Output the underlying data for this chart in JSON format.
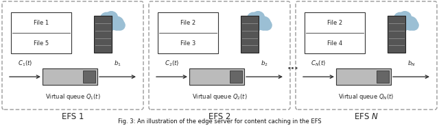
{
  "fig_width": 6.4,
  "fig_height": 1.87,
  "dpi": 100,
  "bg_color": "#ffffff",
  "caption": "Fig. 3: An illustration of the edge server for content caching in the EFS",
  "panels": [
    {
      "label": "EFS 1",
      "files": [
        "File 1",
        "File 5"
      ],
      "c_label": "C_1",
      "b_label": "b_1",
      "q_label": "Q_1"
    },
    {
      "label": "EFS 2",
      "files": [
        "File 2",
        "File 3"
      ],
      "c_label": "C_2",
      "b_label": "b_2",
      "q_label": "Q_2"
    },
    {
      "label": "EFS N",
      "files": [
        "File 2",
        "File 4"
      ],
      "c_label": "C_N",
      "b_label": "b_N",
      "q_label": "Q_N"
    }
  ],
  "dashed_box_color": "#999999",
  "server_color": "#555555",
  "server_line_color": "#888888",
  "cloud_color": "#9bbfd4",
  "queue_outer_color": "#bbbbbb",
  "queue_inner_color": "#666666",
  "arrow_color": "#333333",
  "file_box_bg": "#ffffff",
  "file_box_edge": "#333333",
  "text_color": "#222222",
  "dots_color": "#555555"
}
